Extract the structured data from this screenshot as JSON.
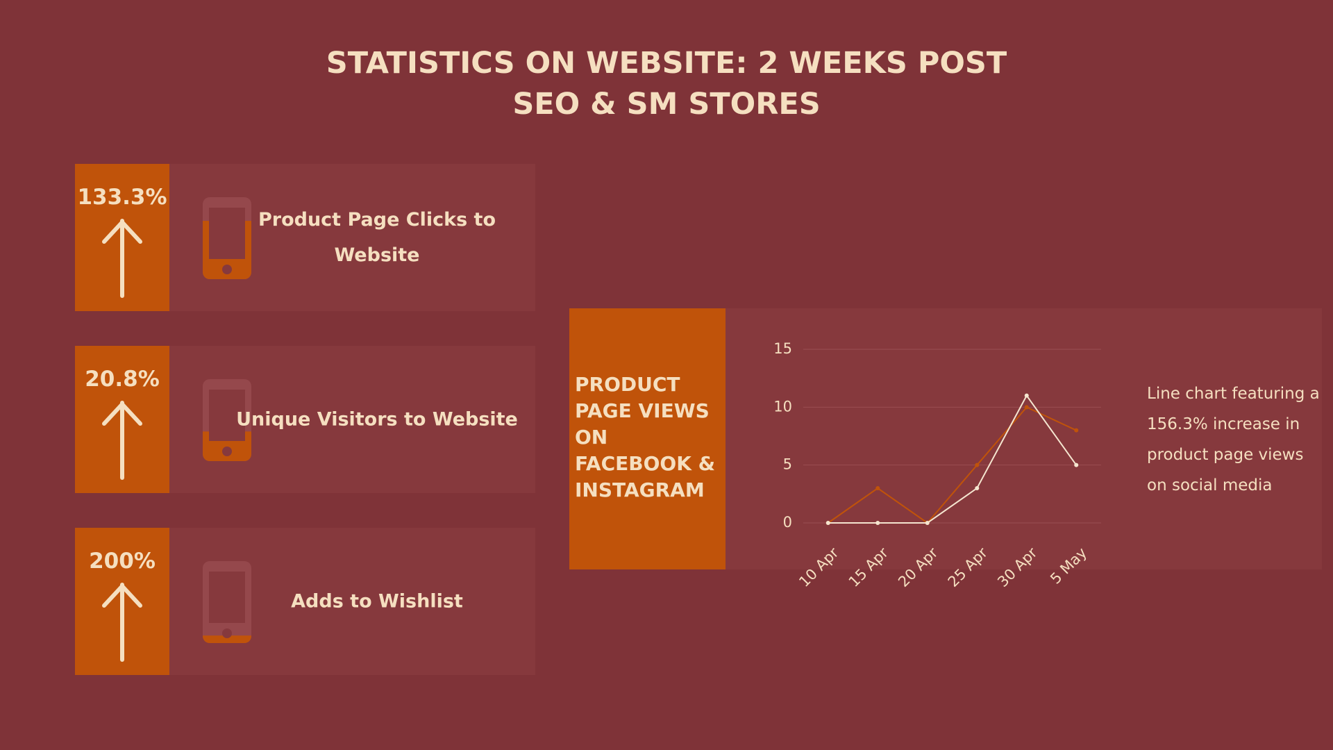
{
  "title": "STATISTICS ON WEBSITE: 2 WEEKS POST SEO & SM STORES",
  "stats": [
    {
      "value": "133.3%",
      "label": "Product Page Clicks to Website"
    },
    {
      "value": "20.8%",
      "label": "Unique Visitors to Website"
    },
    {
      "value": "200%",
      "label": "Adds to Wishlist"
    }
  ],
  "chart_data": {
    "type": "line",
    "title": "PRODUCT PAGE VIEWS ON FACEBOOK & INSTAGRAM",
    "categories": [
      "10 Apr",
      "15 Apr",
      "20 Apr",
      "25 Apr",
      "30 Apr",
      "5 May"
    ],
    "series": [
      {
        "color": "#c0530a",
        "values": [
          0,
          3,
          0,
          5,
          10,
          8
        ]
      },
      {
        "color": "#f5e6d0",
        "values": [
          0,
          0,
          0,
          3,
          11,
          5
        ]
      }
    ],
    "ylim": [
      0,
      15
    ],
    "yticks": [
      0,
      5,
      10,
      15
    ],
    "grid": true,
    "annotation": "Line chart featuring a 156.3% increase in product page views on social media"
  }
}
